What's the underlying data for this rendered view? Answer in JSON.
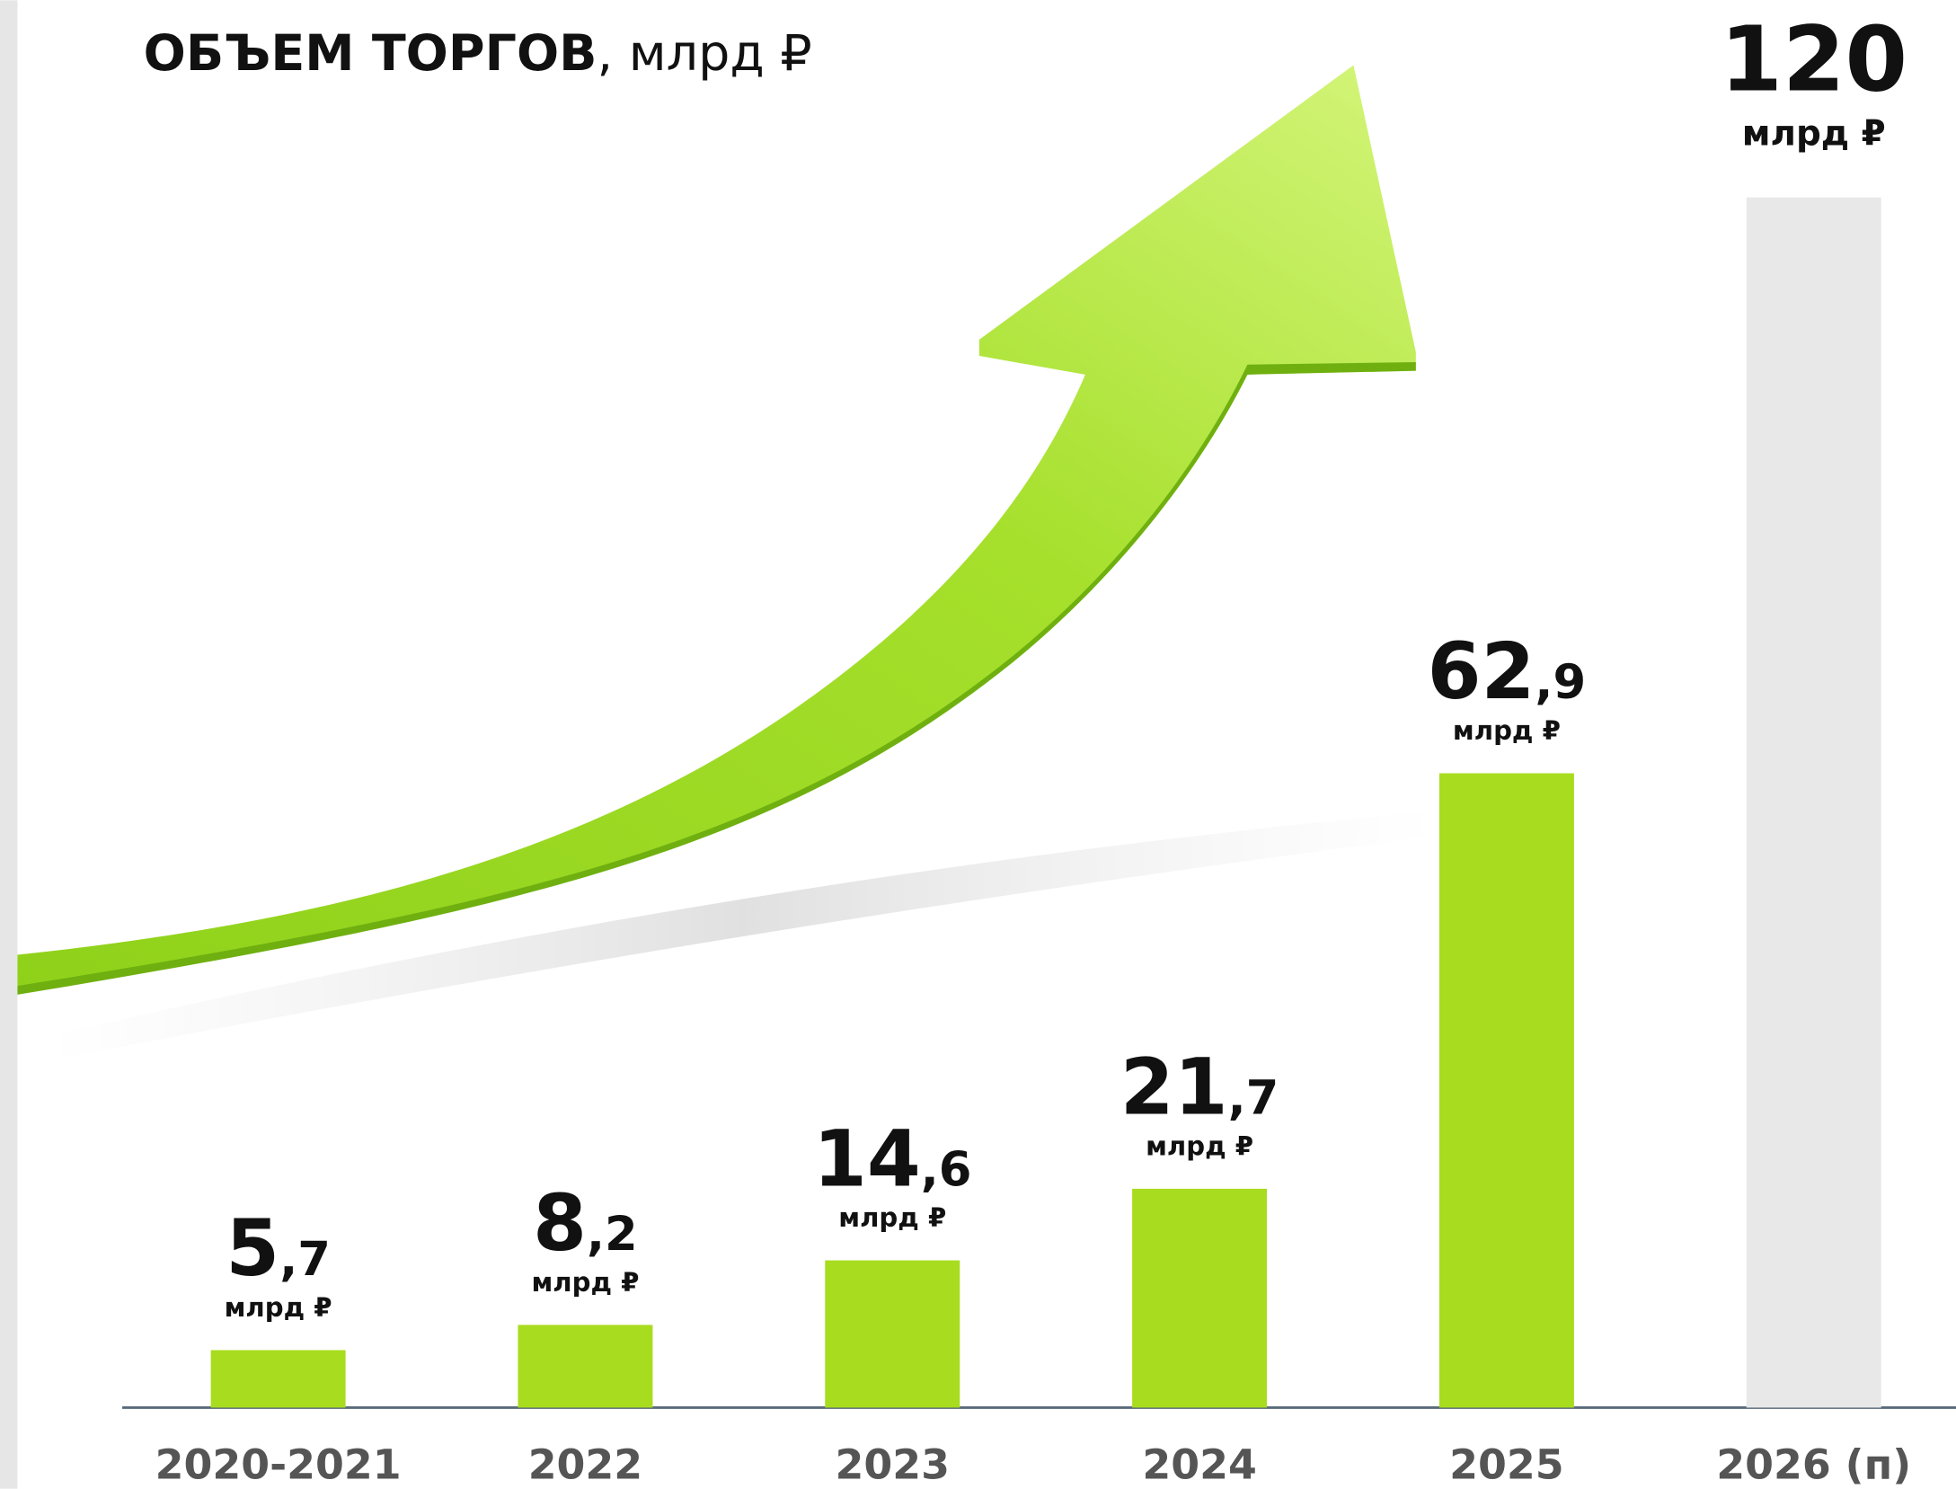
{
  "chart_data": {
    "type": "bar",
    "title": "ОБЪЕМ ТОРГОВ, млрд ₽",
    "categories": [
      "2020-2021",
      "2022",
      "2023",
      "2024",
      "2025",
      "2026 (п)"
    ],
    "values": [
      5.7,
      8.2,
      14.6,
      21.7,
      62.9,
      120
    ],
    "value_labels": [
      "5,7",
      "8,2",
      "14,6",
      "21,7",
      "62,9",
      "120"
    ],
    "unit": "млрд ₽",
    "colors": [
      "#a8dc1e",
      "#a8dc1e",
      "#a8dc1e",
      "#a8dc1e",
      "#a8dc1e",
      "#e8e8e8"
    ],
    "ylim": [
      0,
      120
    ]
  }
}
